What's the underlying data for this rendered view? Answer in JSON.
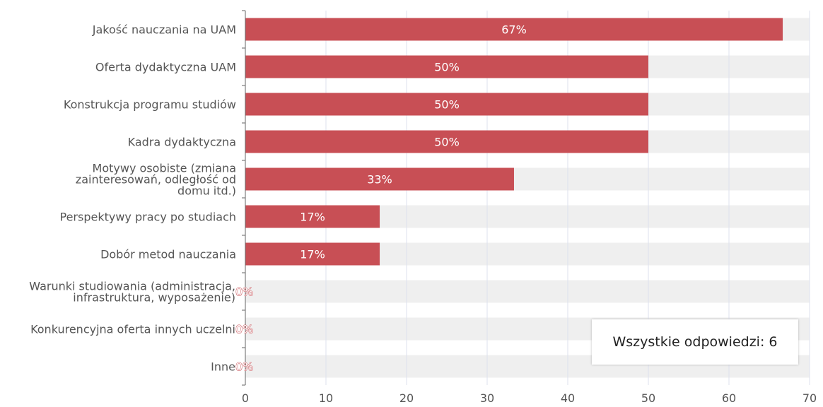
{
  "chart_data": {
    "type": "bar",
    "orientation": "horizontal",
    "categories": [
      "Jakość nauczania na UAM",
      "Oferta dydaktyczna UAM",
      "Konstrukcja programu studiów",
      "Kadra dydaktyczna",
      "Motywy osobiste (zmiana zainteresowań, odległość od domu itd.)",
      "Perspektywy pracy po studiach",
      "Dobór metod nauczania",
      "Warunki studiowania (administracja, infrastruktura, wyposażenie)",
      "Konkurencyjna oferta innych uczelni",
      "Inne"
    ],
    "category_lines": [
      [
        "Jakość nauczania na UAM"
      ],
      [
        "Oferta dydaktyczna UAM"
      ],
      [
        "Konstrukcja programu studiów"
      ],
      [
        "Kadra dydaktyczna"
      ],
      [
        "Motywy osobiste (zmiana",
        "zainteresowań, odległość od",
        "domu itd.)"
      ],
      [
        "Perspektywy pracy po studiach"
      ],
      [
        "Dobór metod nauczania"
      ],
      [
        "Warunki studiowania (administracja,",
        "infrastruktura, wyposażenie)"
      ],
      [
        "Konkurencyjna oferta innych uczelni"
      ],
      [
        "Inne"
      ]
    ],
    "values": [
      66.67,
      50,
      50,
      50,
      33.33,
      16.67,
      16.67,
      0,
      0,
      0
    ],
    "data_labels": [
      "67%",
      "50%",
      "50%",
      "50%",
      "33%",
      "17%",
      "17%",
      "0%",
      "0%",
      "0%"
    ],
    "xlim": [
      0,
      70
    ],
    "xticks": [
      0,
      10,
      20,
      30,
      40,
      50,
      60,
      70
    ],
    "grid": true,
    "bar_color": "#c84f55",
    "track_color": "#efefef",
    "gridline_color": "#dde0ee"
  },
  "summary_box": {
    "text": "Wszystkie odpowiedzi: 6"
  }
}
